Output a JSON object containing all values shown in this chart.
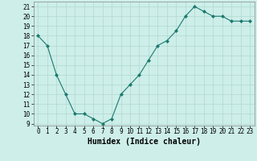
{
  "x": [
    0,
    1,
    2,
    3,
    4,
    5,
    6,
    7,
    8,
    9,
    10,
    11,
    12,
    13,
    14,
    15,
    16,
    17,
    18,
    19,
    20,
    21,
    22,
    23
  ],
  "y": [
    18,
    17,
    14,
    12,
    10,
    10,
    9.5,
    9,
    9.5,
    12,
    13,
    14,
    15.5,
    17,
    17.5,
    18.5,
    20,
    21,
    20.5,
    20,
    20,
    19.5,
    19.5,
    19.5
  ],
  "xlabel": "Humidex (Indice chaleur)",
  "xlim": [
    -0.5,
    23.5
  ],
  "ylim": [
    8.8,
    21.5
  ],
  "yticks": [
    9,
    10,
    11,
    12,
    13,
    14,
    15,
    16,
    17,
    18,
    19,
    20,
    21
  ],
  "xticks": [
    0,
    1,
    2,
    3,
    4,
    5,
    6,
    7,
    8,
    9,
    10,
    11,
    12,
    13,
    14,
    15,
    16,
    17,
    18,
    19,
    20,
    21,
    22,
    23
  ],
  "line_color": "#1a7a6e",
  "marker": "D",
  "marker_size": 2.0,
  "bg_color": "#cdeee9",
  "grid_color": "#b0d9d0",
  "axis_fontsize": 6.5,
  "tick_fontsize": 5.5,
  "xlabel_fontsize": 7,
  "xlabel_fontweight": "bold"
}
